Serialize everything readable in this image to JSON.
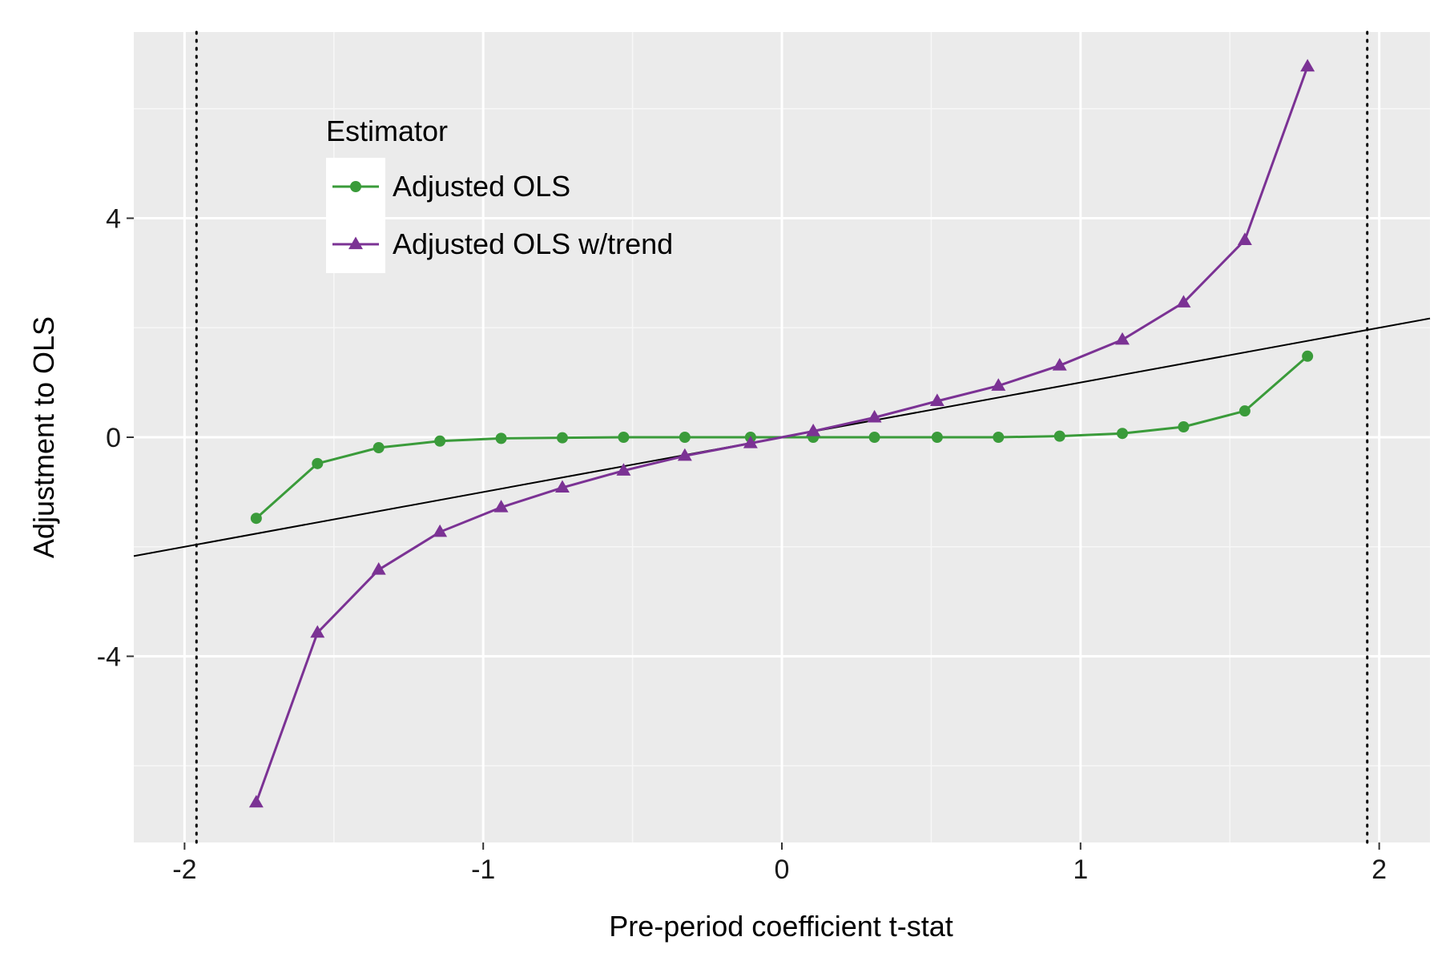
{
  "chart_data": {
    "type": "line",
    "title": "",
    "xlabel": "Pre-period coefficient t-stat",
    "ylabel": "Adjustment to OLS",
    "xlim": [
      -2.17,
      2.17
    ],
    "ylim": [
      -7.4,
      7.4
    ],
    "x_ticks": [
      -2,
      -1,
      0,
      1,
      2
    ],
    "x_tick_labels": [
      "-2",
      "-1",
      "0",
      "1",
      "2"
    ],
    "x_minor_ticks": [
      -1.5,
      -0.5,
      0.5,
      1.5
    ],
    "y_ticks": [
      -4,
      0,
      4
    ],
    "y_tick_labels": [
      "-4",
      "0",
      "4"
    ],
    "y_minor_ticks": [
      -6,
      -2,
      2,
      6
    ],
    "grid": true,
    "background": "#EBEBEB",
    "vlines": [
      -1.96,
      1.96
    ],
    "reference_line": {
      "slope": 1,
      "intercept": 0,
      "color": "#000000"
    },
    "legend": {
      "title": "Estimator",
      "position": "top-left"
    },
    "x": [
      -1.76,
      -1.555,
      -1.35,
      -1.145,
      -0.94,
      -0.735,
      -0.53,
      -0.325,
      -0.105,
      0.105,
      0.31,
      0.52,
      0.725,
      0.93,
      1.14,
      1.345,
      1.55,
      1.76
    ],
    "series": [
      {
        "name": "Adjusted OLS",
        "color": "#3A9B3A",
        "marker": "circle",
        "values": [
          -1.48,
          -0.48,
          -0.19,
          -0.07,
          -0.02,
          -0.01,
          0.0,
          0.0,
          0.0,
          0.0,
          0.0,
          0.0,
          0.0,
          0.02,
          0.07,
          0.19,
          0.48,
          1.48
        ]
      },
      {
        "name": "Adjusted OLS w/trend",
        "color": "#7B3294",
        "marker": "triangle",
        "values": [
          -6.67,
          -3.57,
          -2.42,
          -1.73,
          -1.28,
          -0.92,
          -0.61,
          -0.34,
          -0.11,
          0.11,
          0.36,
          0.66,
          0.94,
          1.31,
          1.78,
          2.46,
          3.6,
          6.77
        ]
      }
    ]
  }
}
